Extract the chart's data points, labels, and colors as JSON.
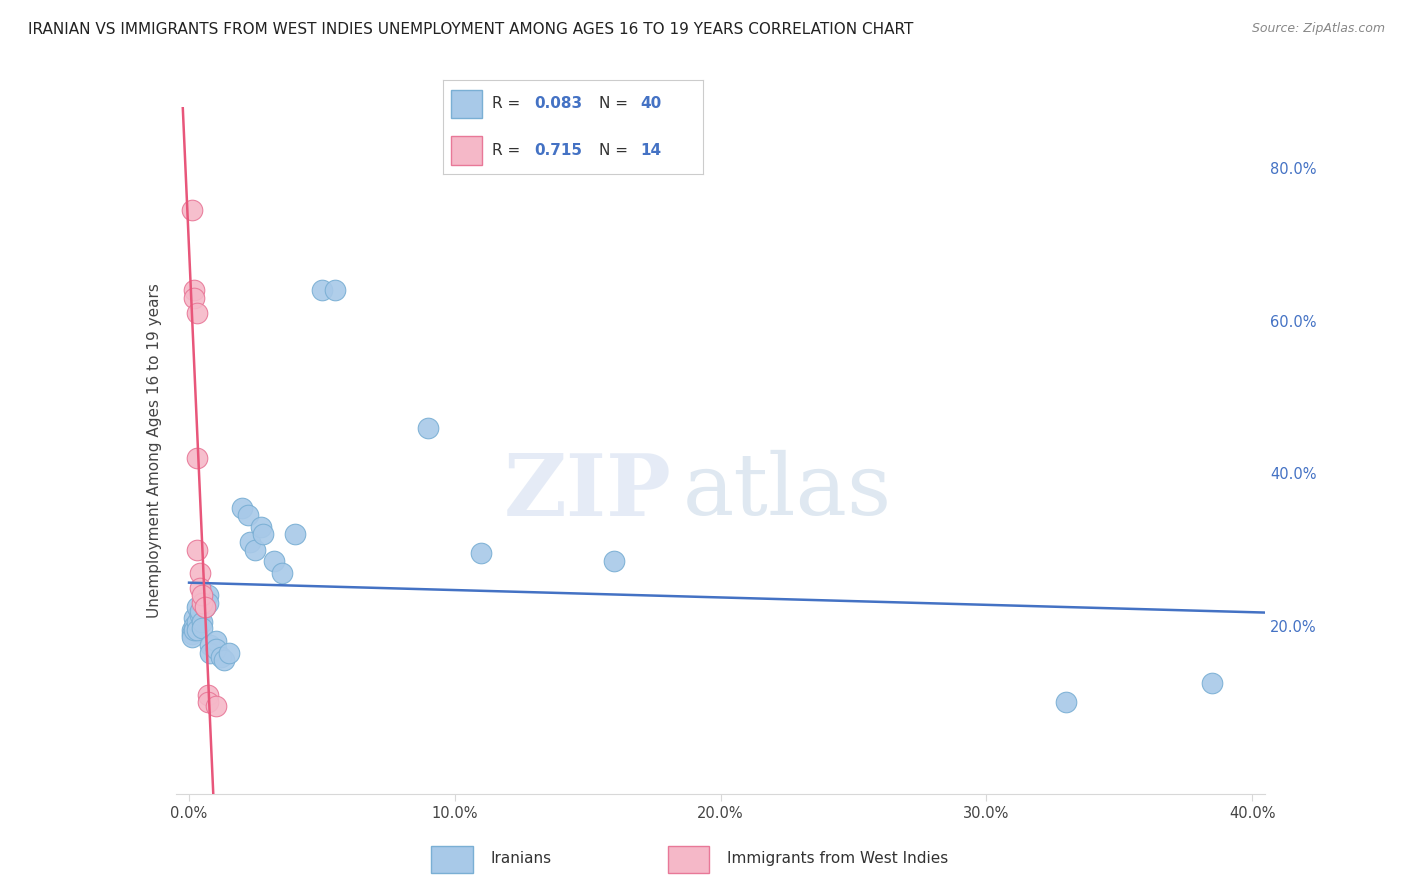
{
  "title": "IRANIAN VS IMMIGRANTS FROM WEST INDIES UNEMPLOYMENT AMONG AGES 16 TO 19 YEARS CORRELATION CHART",
  "source": "Source: ZipAtlas.com",
  "ylabel": "Unemployment Among Ages 16 to 19 years",
  "watermark_zip": "ZIP",
  "watermark_atlas": "atlas",
  "xlim": [
    -0.005,
    0.405
  ],
  "ylim": [
    -0.02,
    0.88
  ],
  "xticks": [
    0.0,
    0.1,
    0.2,
    0.3,
    0.4
  ],
  "yticks_right": [
    0.2,
    0.4,
    0.6,
    0.8
  ],
  "blue_scatter_color": "#a8c9e8",
  "blue_edge_color": "#7aafd4",
  "pink_scatter_color": "#f5b8c8",
  "pink_edge_color": "#e87898",
  "line_blue_color": "#4472c4",
  "line_pink_color": "#e8567a",
  "grid_color": "#d8d8d8",
  "right_tick_color": "#4472c4",
  "legend_box_color": "#dddddd",
  "blue_R": "0.083",
  "blue_N": "40",
  "pink_R": "0.715",
  "pink_N": "14",
  "label_iranians": "Iranians",
  "label_west_indies": "Immigrants from West Indies",
  "blue_points": [
    [
      0.001,
      0.195
    ],
    [
      0.001,
      0.19
    ],
    [
      0.001,
      0.185
    ],
    [
      0.002,
      0.21
    ],
    [
      0.002,
      0.2
    ],
    [
      0.002,
      0.195
    ],
    [
      0.003,
      0.225
    ],
    [
      0.003,
      0.205
    ],
    [
      0.003,
      0.195
    ],
    [
      0.004,
      0.215
    ],
    [
      0.004,
      0.22
    ],
    [
      0.005,
      0.205
    ],
    [
      0.005,
      0.198
    ],
    [
      0.006,
      0.235
    ],
    [
      0.006,
      0.225
    ],
    [
      0.007,
      0.24
    ],
    [
      0.007,
      0.23
    ],
    [
      0.008,
      0.175
    ],
    [
      0.008,
      0.165
    ],
    [
      0.01,
      0.18
    ],
    [
      0.01,
      0.17
    ],
    [
      0.012,
      0.16
    ],
    [
      0.013,
      0.155
    ],
    [
      0.015,
      0.165
    ],
    [
      0.02,
      0.355
    ],
    [
      0.022,
      0.345
    ],
    [
      0.023,
      0.31
    ],
    [
      0.025,
      0.3
    ],
    [
      0.027,
      0.33
    ],
    [
      0.028,
      0.32
    ],
    [
      0.032,
      0.285
    ],
    [
      0.035,
      0.27
    ],
    [
      0.04,
      0.32
    ],
    [
      0.05,
      0.64
    ],
    [
      0.055,
      0.64
    ],
    [
      0.09,
      0.46
    ],
    [
      0.11,
      0.295
    ],
    [
      0.16,
      0.285
    ],
    [
      0.33,
      0.1
    ],
    [
      0.385,
      0.125
    ]
  ],
  "pink_points": [
    [
      0.001,
      0.745
    ],
    [
      0.002,
      0.64
    ],
    [
      0.002,
      0.63
    ],
    [
      0.003,
      0.61
    ],
    [
      0.003,
      0.42
    ],
    [
      0.003,
      0.3
    ],
    [
      0.004,
      0.27
    ],
    [
      0.004,
      0.25
    ],
    [
      0.005,
      0.23
    ],
    [
      0.005,
      0.24
    ],
    [
      0.006,
      0.225
    ],
    [
      0.007,
      0.11
    ],
    [
      0.007,
      0.1
    ],
    [
      0.01,
      0.095
    ]
  ]
}
